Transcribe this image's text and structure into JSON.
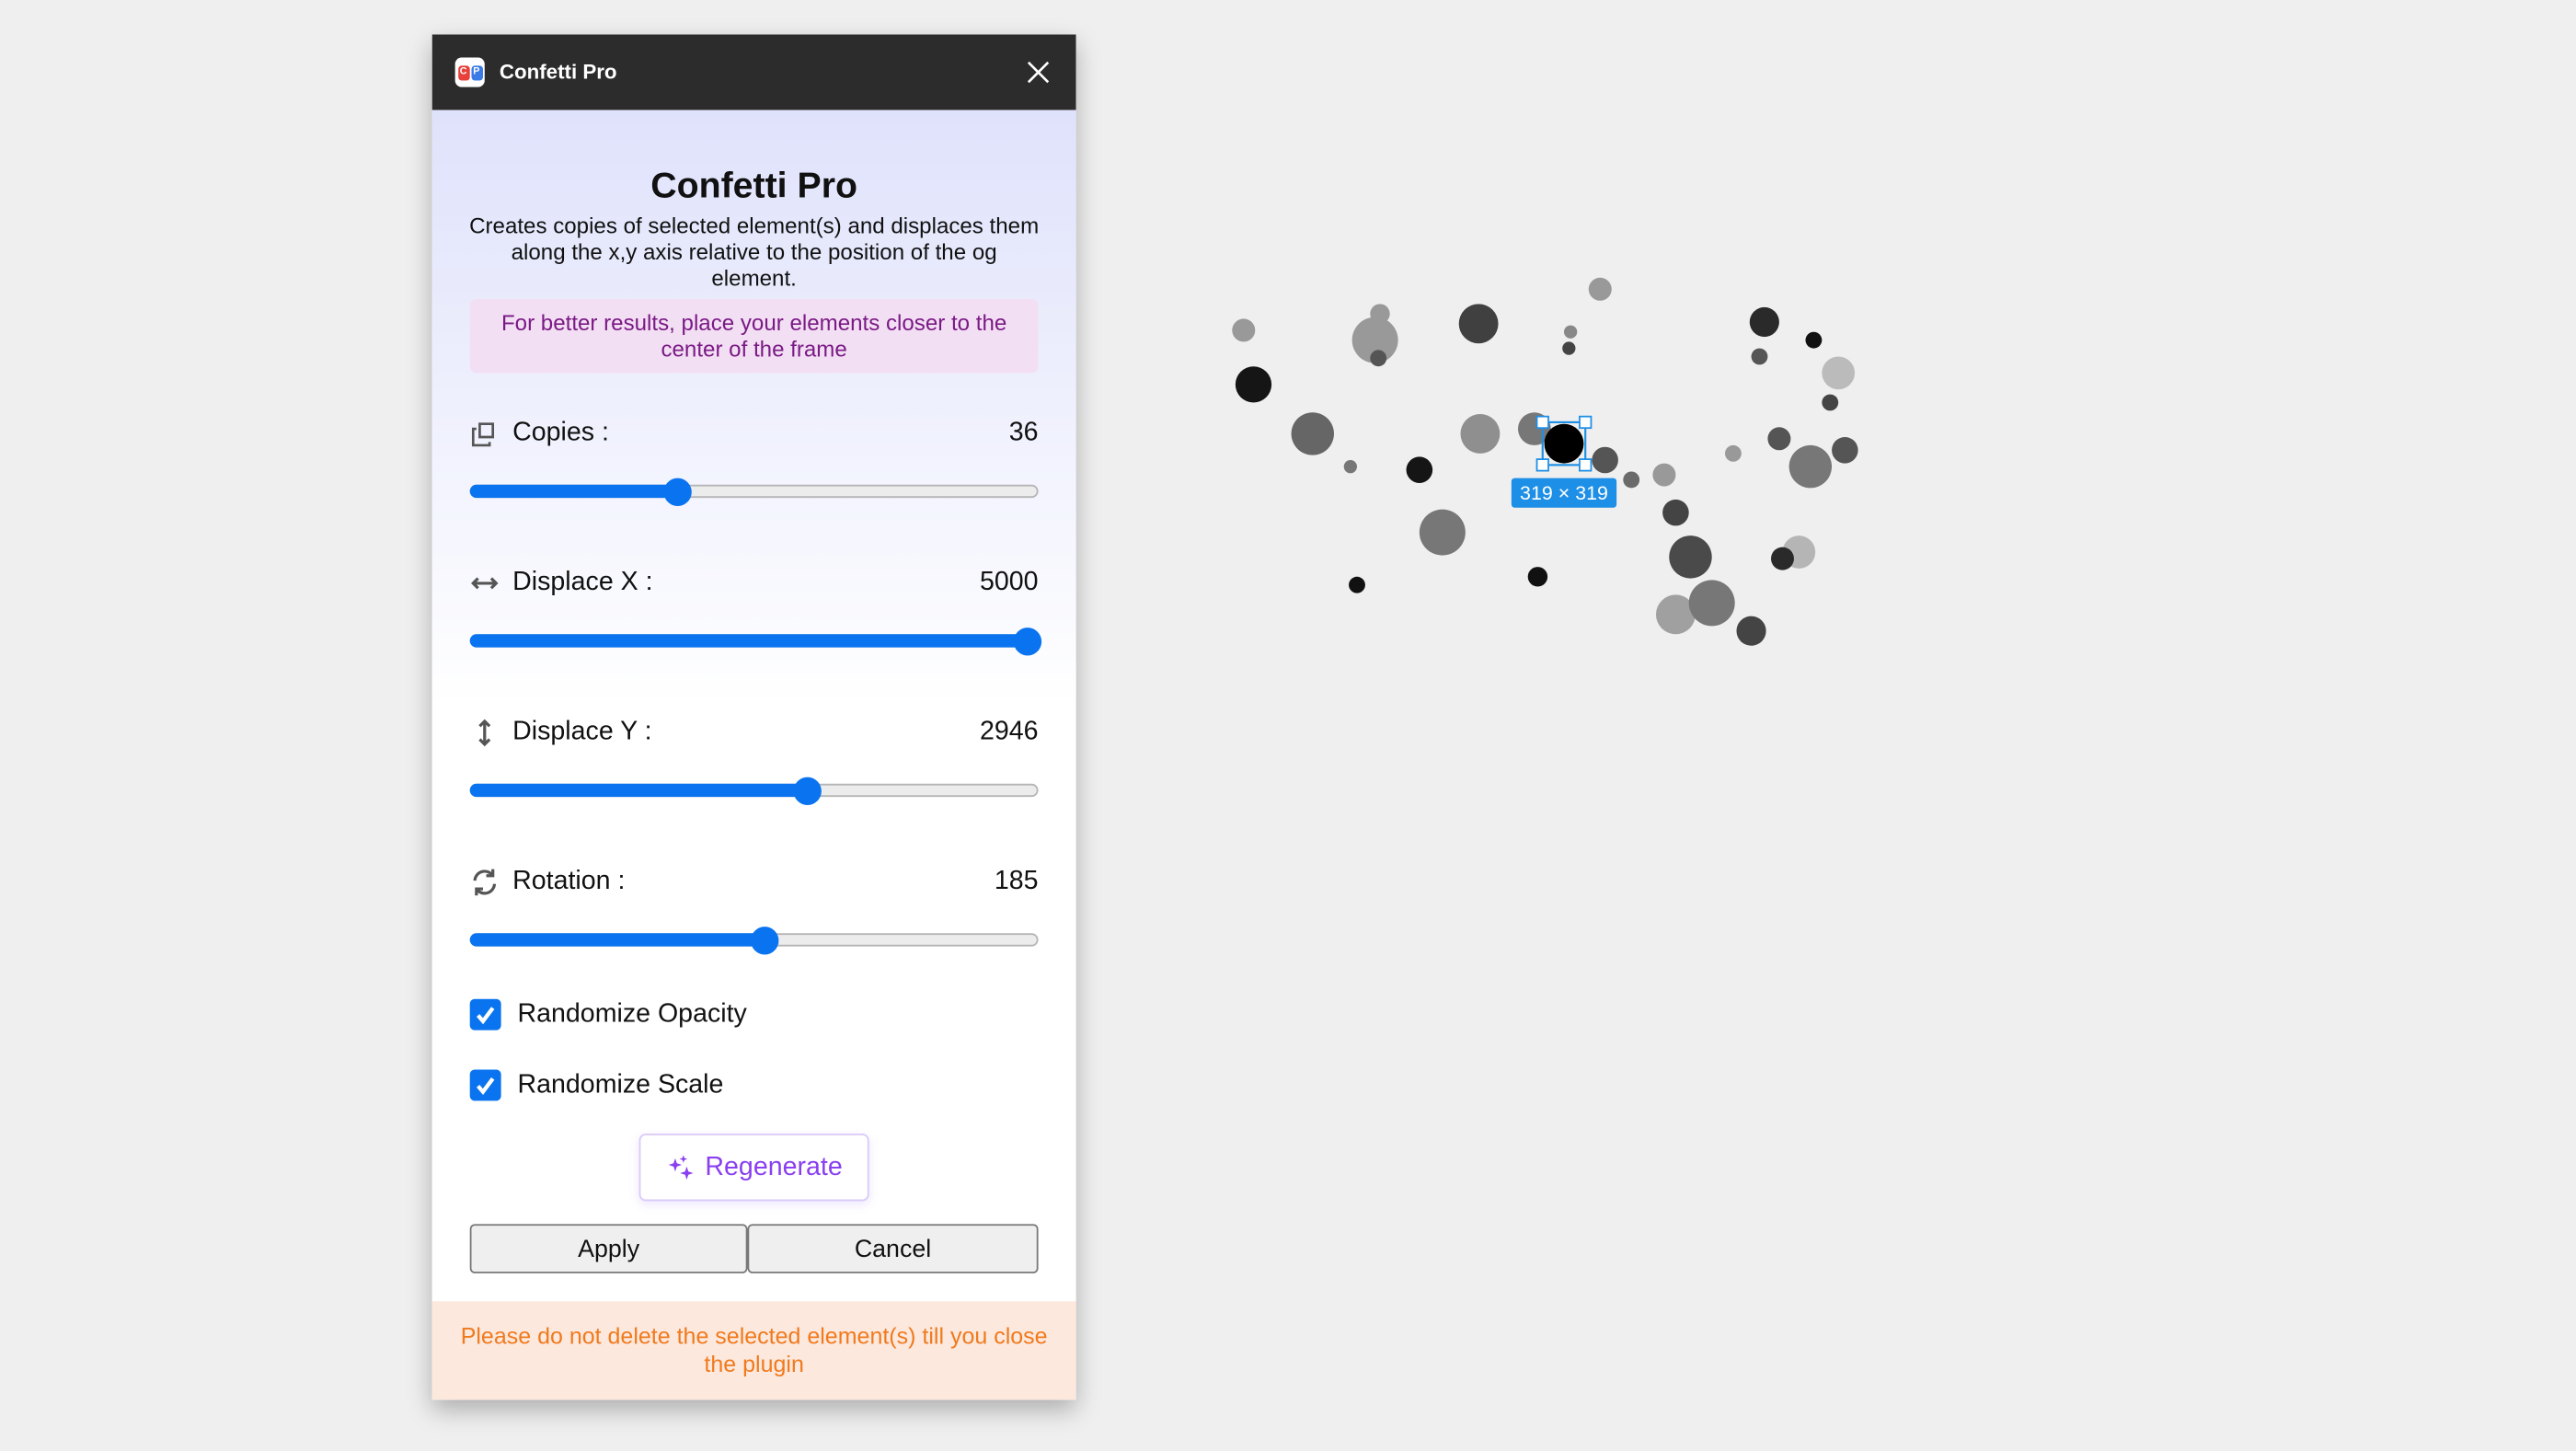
{
  "window": {
    "title": "Confetti Pro",
    "close_icon": "close-icon",
    "app_icon_letters": "CP"
  },
  "main": {
    "title": "Confetti Pro",
    "description": "Creates copies of selected element(s) and displaces them along the x,y axis relative to the position of the og element.",
    "tip": "For better results, place your elements closer to the center of the frame"
  },
  "sliders": [
    {
      "label": "Copies :",
      "value": "36",
      "icon": "copy-icon",
      "level": 0.36
    },
    {
      "label": "Displace X :",
      "value": "5000",
      "icon": "horizontal-arrows-icon",
      "level": 1.0
    },
    {
      "label": "Displace Y :",
      "value": "2946",
      "icon": "vertical-arrows-icon",
      "level": 0.589
    },
    {
      "label": "Rotation :",
      "value": "185",
      "icon": "rotate-icon",
      "level": 0.514
    }
  ],
  "checkboxes": [
    {
      "label": "Randomize Opacity",
      "checked": true
    },
    {
      "label": "Randomize Scale",
      "checked": true
    }
  ],
  "buttons": {
    "regenerate": "Regenerate",
    "apply": "Apply",
    "cancel": "Cancel"
  },
  "footer": {
    "warning": "Please do not delete the selected element(s) till you close the plugin"
  },
  "canvas": {
    "selection_size": "319 × 319"
  },
  "colors": {
    "accent": "#0a74f0",
    "regenerate": "#8a3ff0",
    "tip_text": "#7a1a86",
    "warning_text": "#f07a1d",
    "selection": "#1e8fe6"
  }
}
